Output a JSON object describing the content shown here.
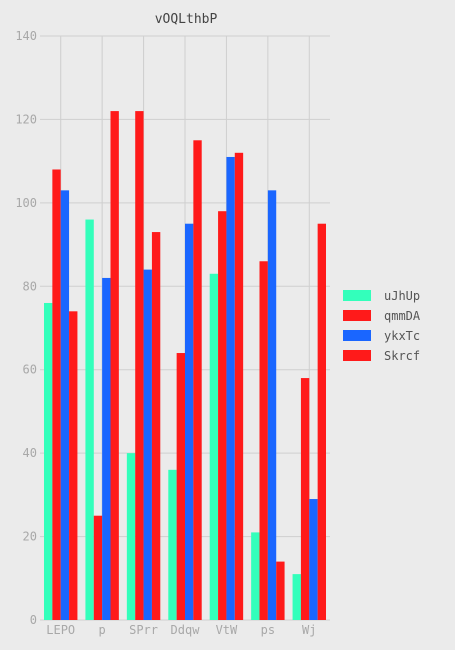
{
  "chart_data": {
    "type": "bar",
    "title": "vOQLthbP",
    "xlabel": "",
    "ylabel": "",
    "categories": [
      "LEPO",
      "p",
      "SPrr",
      "Ddqw",
      "VtW",
      "ps",
      "Wj"
    ],
    "ylim": [
      0,
      140
    ],
    "yticks": [
      0,
      20,
      40,
      60,
      80,
      100,
      120,
      140
    ],
    "grid": true,
    "legend_position": "right",
    "series": [
      {
        "name": "uJhUp",
        "color": "#33ffbb",
        "values": [
          76,
          96,
          40,
          36,
          83,
          21,
          11
        ]
      },
      {
        "name": "qmmDA",
        "color": "#ff1a1a",
        "values": [
          108,
          25,
          122,
          64,
          98,
          86,
          58
        ]
      },
      {
        "name": "ykxTc",
        "color": "#1a66ff",
        "values": [
          103,
          82,
          84,
          95,
          111,
          103,
          29
        ]
      },
      {
        "name": "Skrcf",
        "color": "#ff1a1a",
        "values": [
          74,
          122,
          93,
          115,
          112,
          14,
          95
        ]
      }
    ]
  }
}
